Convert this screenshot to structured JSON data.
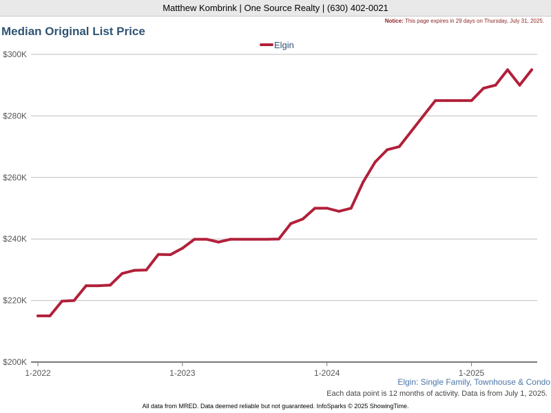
{
  "header": {
    "agent_line": "Matthew Kombrink | One Source Realty | (630) 402-0021",
    "notice_label": "Notice:",
    "notice_text": "This page expires in 29 days on Thursday, July 31, 2025."
  },
  "colors": {
    "series": "#b1203a",
    "title": "#2f5474",
    "subtitle": "#4a76a8"
  },
  "chart_data": {
    "type": "line",
    "title": "Median Original List Price",
    "subtitle": "Elgin: Single Family, Townhouse & Condo",
    "note": "Each data point is 12 months of activity. Data is from July 1, 2025.",
    "ylim": [
      200000,
      300000
    ],
    "y_ticks": [
      200000,
      220000,
      240000,
      260000,
      280000,
      300000
    ],
    "y_tick_labels": [
      "$200K",
      "$220K",
      "$240K",
      "$260K",
      "$280K",
      "$300K"
    ],
    "x_ticks": [
      "2022-01",
      "2023-01",
      "2024-01",
      "2025-01"
    ],
    "x_tick_labels": [
      "1-2022",
      "1-2023",
      "1-2024",
      "1-2025"
    ],
    "grid": true,
    "legend_position": "top-center",
    "series": [
      {
        "name": "Elgin",
        "color": "#b1203a",
        "points": [
          [
            "2022-01",
            215000
          ],
          [
            "2022-02",
            215000
          ],
          [
            "2022-03",
            219800
          ],
          [
            "2022-04",
            220000
          ],
          [
            "2022-05",
            224800
          ],
          [
            "2022-06",
            224800
          ],
          [
            "2022-07",
            225000
          ],
          [
            "2022-08",
            228800
          ],
          [
            "2022-09",
            229800
          ],
          [
            "2022-10",
            229900
          ],
          [
            "2022-11",
            235000
          ],
          [
            "2022-12",
            234900
          ],
          [
            "2023-01",
            237000
          ],
          [
            "2023-02",
            239900
          ],
          [
            "2023-03",
            239900
          ],
          [
            "2023-04",
            239000
          ],
          [
            "2023-05",
            239900
          ],
          [
            "2023-06",
            239900
          ],
          [
            "2023-07",
            239900
          ],
          [
            "2023-08",
            239900
          ],
          [
            "2023-09",
            240000
          ],
          [
            "2023-10",
            245000
          ],
          [
            "2023-11",
            246500
          ],
          [
            "2023-12",
            250000
          ],
          [
            "2024-01",
            250000
          ],
          [
            "2024-02",
            249000
          ],
          [
            "2024-03",
            250000
          ],
          [
            "2024-04",
            258500
          ],
          [
            "2024-05",
            265000
          ],
          [
            "2024-06",
            269000
          ],
          [
            "2024-07",
            270000
          ],
          [
            "2024-08",
            275000
          ],
          [
            "2024-09",
            280000
          ],
          [
            "2024-10",
            285000
          ],
          [
            "2024-11",
            285000
          ],
          [
            "2024-12",
            285000
          ],
          [
            "2025-01",
            285000
          ],
          [
            "2025-02",
            289000
          ],
          [
            "2025-03",
            290000
          ],
          [
            "2025-04",
            295000
          ],
          [
            "2025-05",
            290000
          ],
          [
            "2025-06",
            295000
          ]
        ]
      }
    ]
  },
  "footer": {
    "text": "All data from MRED. Data deemed reliable but not guaranteed. InfoSparks © 2025 ShowingTime."
  }
}
